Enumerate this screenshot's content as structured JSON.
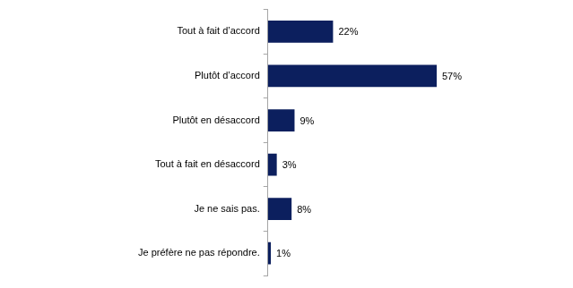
{
  "chart_data": {
    "type": "bar",
    "orientation": "horizontal",
    "categories": [
      "Tout à fait d’accord",
      "Plutôt d’accord",
      "Plutôt en désaccord",
      "Tout à fait en désaccord",
      "Je ne sais pas.",
      "Je préfère ne pas répondre."
    ],
    "values": [
      22,
      57,
      9,
      3,
      8,
      1
    ],
    "value_labels": [
      "22%",
      "57%",
      "9%",
      "3%",
      "8%",
      "1%"
    ],
    "color": "#0c1f5e",
    "xlim": [
      0,
      100
    ],
    "grid": false,
    "data_labels": true,
    "tick_labels": "y"
  }
}
